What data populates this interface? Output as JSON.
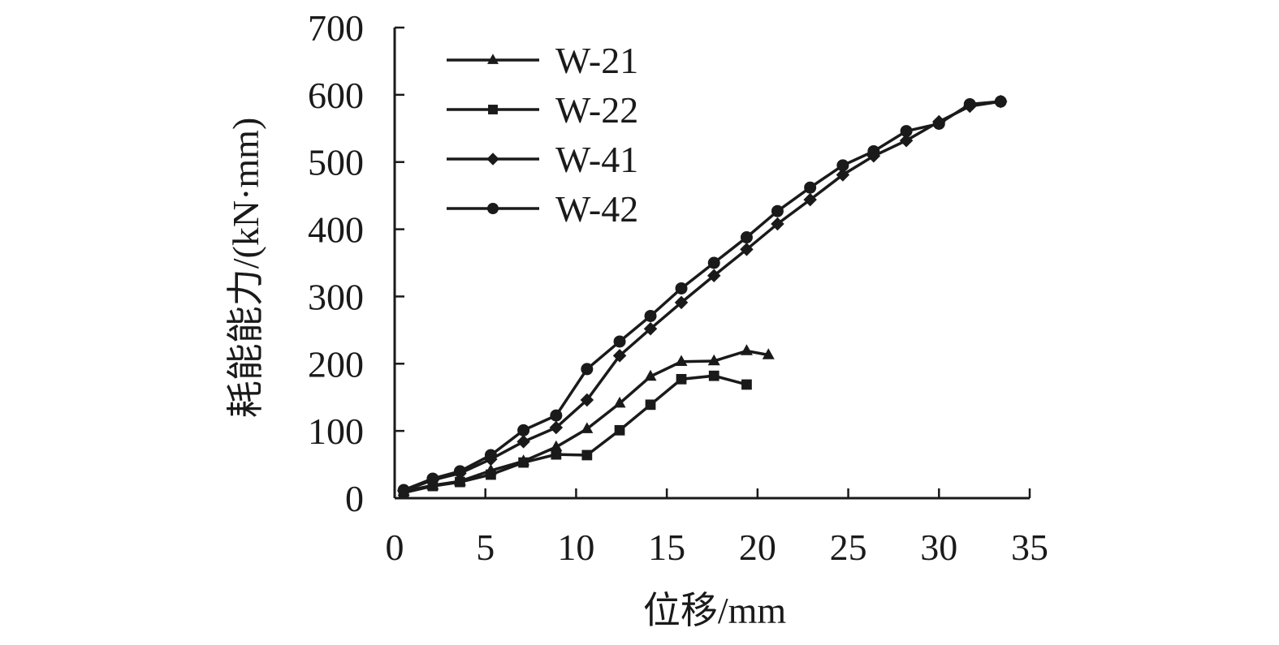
{
  "chart_data": {
    "type": "line",
    "title": "",
    "xlabel": "位移/mm",
    "ylabel": "耗能能力/(kN·mm)",
    "xlim": [
      0,
      35
    ],
    "ylim": [
      0,
      700
    ],
    "xticks": [
      0,
      5,
      10,
      15,
      20,
      25,
      30,
      35
    ],
    "yticks": [
      0,
      100,
      200,
      300,
      400,
      500,
      600,
      700
    ],
    "grid": false,
    "legend_position": "top-left",
    "line_color": "#1a1a1a",
    "series": [
      {
        "name": "W-21",
        "marker": "triangle",
        "x": [
          0.5,
          2.1,
          3.6,
          5.3,
          7.1,
          8.9,
          10.6,
          12.4,
          14.1,
          15.8,
          17.6,
          19.4,
          20.6
        ],
        "y": [
          10,
          19,
          25,
          41,
          55,
          76,
          103,
          141,
          181,
          203,
          204,
          219,
          213
        ]
      },
      {
        "name": "W-22",
        "marker": "square",
        "x": [
          0.5,
          2.1,
          3.6,
          5.3,
          7.1,
          8.9,
          10.6,
          12.4,
          14.1,
          15.8,
          17.6,
          19.4
        ],
        "y": [
          8,
          18,
          24,
          35,
          53,
          65,
          64,
          101,
          139,
          177,
          182,
          169
        ]
      },
      {
        "name": "W-41",
        "marker": "diamond",
        "x": [
          0.5,
          2.1,
          3.6,
          5.3,
          7.1,
          8.9,
          10.6,
          12.4,
          14.1,
          15.8,
          17.6,
          19.4,
          21.1,
          22.9,
          24.7,
          26.4,
          28.2,
          30.0,
          31.7,
          33.4
        ],
        "y": [
          11,
          27,
          37,
          58,
          84,
          105,
          146,
          212,
          252,
          291,
          331,
          370,
          408,
          444,
          481,
          509,
          532,
          560,
          583,
          590
        ]
      },
      {
        "name": "W-42",
        "marker": "circle",
        "x": [
          0.5,
          2.1,
          3.6,
          5.3,
          7.1,
          8.9,
          10.6,
          12.4,
          14.1,
          15.8,
          17.6,
          19.4,
          21.1,
          22.9,
          24.7,
          26.4,
          28.2,
          30.0,
          31.7,
          33.4
        ],
        "y": [
          12,
          29,
          40,
          64,
          101,
          123,
          192,
          233,
          271,
          312,
          350,
          388,
          427,
          462,
          495,
          516,
          546,
          557,
          586,
          590
        ]
      }
    ]
  }
}
